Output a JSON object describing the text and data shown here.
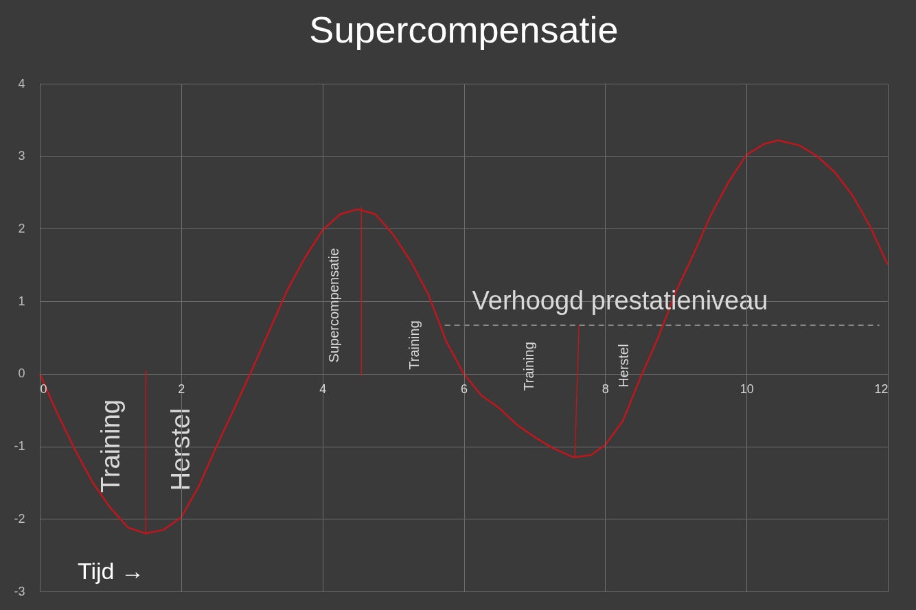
{
  "chart_data": {
    "type": "line",
    "title": "Supercompensatie",
    "xlabel": "Tijd →",
    "xlim": [
      0,
      12
    ],
    "xticks": [
      0,
      2,
      4,
      6,
      8,
      10,
      12
    ],
    "ylim": [
      -3,
      4
    ],
    "yticks": [
      -3,
      -2,
      -1,
      0,
      1,
      2,
      3,
      4
    ],
    "grid": true,
    "series": [
      {
        "color": "#c0161c",
        "x": [
          0,
          0.25,
          0.5,
          0.75,
          1.0,
          1.25,
          1.5,
          1.75,
          2.0,
          2.25,
          2.5,
          2.75,
          3.0,
          3.25,
          3.5,
          3.75,
          4.0,
          4.25,
          4.5,
          4.75,
          5.0,
          5.25,
          5.5,
          5.75,
          6.0,
          6.25,
          6.5,
          6.75,
          7.0,
          7.25,
          7.55,
          7.8,
          8.0,
          8.25,
          8.5,
          8.75,
          9.0,
          9.25,
          9.5,
          9.75,
          10.0,
          10.25,
          10.45,
          10.75,
          11.0,
          11.25,
          11.5,
          11.75,
          12.0
        ],
        "values": [
          0,
          -0.55,
          -1.05,
          -1.5,
          -1.85,
          -2.12,
          -2.2,
          -2.15,
          -1.98,
          -1.55,
          -1.0,
          -0.48,
          0.05,
          0.6,
          1.15,
          1.6,
          1.98,
          2.2,
          2.27,
          2.2,
          1.92,
          1.55,
          1.09,
          0.45,
          0,
          -0.3,
          -0.47,
          -0.7,
          -0.87,
          -1.02,
          -1.15,
          -1.12,
          -0.98,
          -0.65,
          -0.05,
          0.5,
          1.13,
          1.65,
          2.2,
          2.65,
          3.02,
          3.17,
          3.22,
          3.15,
          3.0,
          2.78,
          2.46,
          2.03,
          1.5
        ]
      },
      {
        "type": "line",
        "color": "#c0161c",
        "x": [
          1.5,
          1.5
        ],
        "values": [
          0.05,
          -2.2
        ]
      },
      {
        "type": "line",
        "color": "#c0161c",
        "x": [
          4.55,
          4.55
        ],
        "values": [
          2.3,
          -0.03
        ]
      },
      {
        "type": "line",
        "color": "#c0161c",
        "x": [
          7.63,
          7.57
        ],
        "values": [
          0.67,
          -1.15
        ]
      },
      {
        "type": "line",
        "color": "#a6a6a6",
        "line_style": "dashed",
        "x": [
          5.73,
          11.88
        ],
        "values": [
          0.67,
          0.67
        ]
      }
    ],
    "annotations": [
      "Training",
      "Herstel",
      "Supercompensatie",
      "Training",
      "Training",
      "Herstel",
      "Verhoogd prestatieniveau"
    ]
  }
}
